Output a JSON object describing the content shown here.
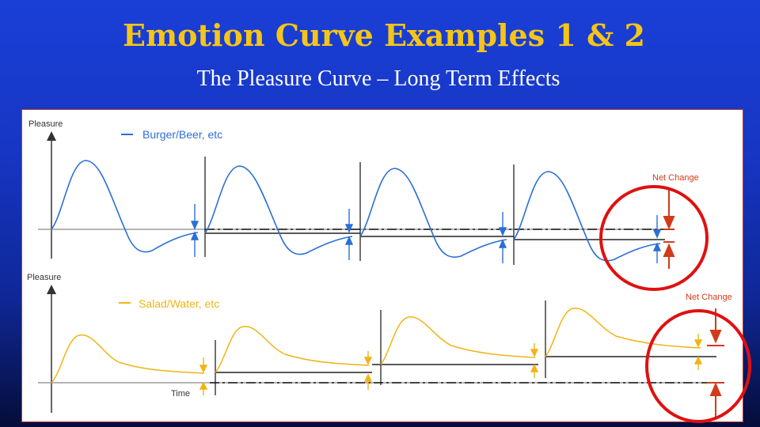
{
  "slide": {
    "title": "Emotion Curve Examples 1 & 2",
    "subtitle": "The Pleasure Curve – Long Term Effects"
  },
  "top_chart": {
    "axis_label": "Pleasure",
    "legend": "Burger/Beer, etc",
    "net_change_label": "Net Change",
    "color": "#2b6fd6"
  },
  "bottom_chart": {
    "axis_label": "Pleasure",
    "x_axis_label": "Time",
    "legend": "Salad/Water, etc",
    "net_change_label": "Net Change",
    "color": "#f0b416"
  },
  "colors": {
    "title": "#f5c518",
    "highlight_circle": "#e01010",
    "net_change_arrows": "#d13b1a"
  }
}
